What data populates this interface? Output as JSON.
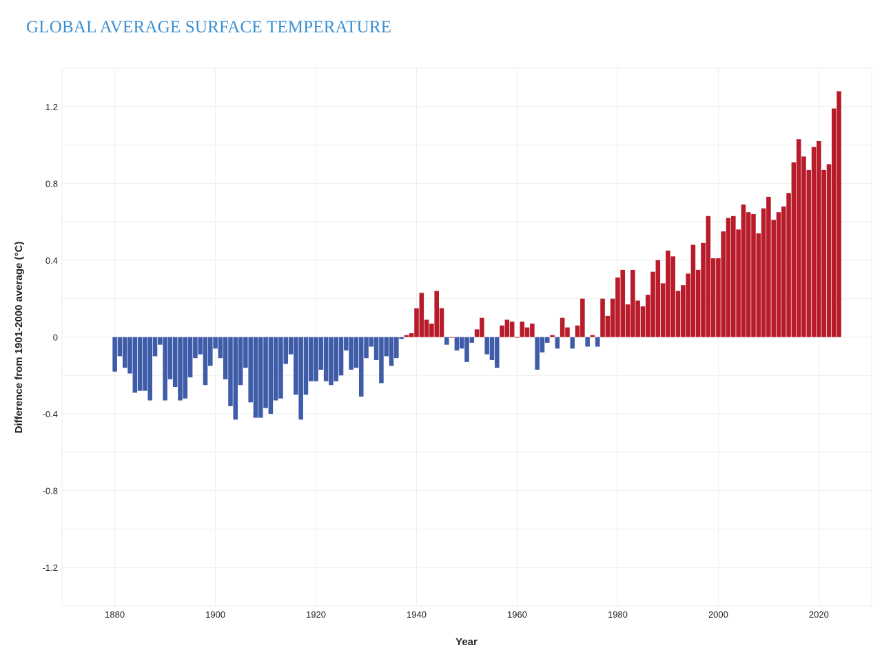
{
  "title": "GLOBAL AVERAGE SURFACE TEMPERATURE",
  "chart_data": {
    "type": "bar",
    "title": "GLOBAL AVERAGE SURFACE TEMPERATURE",
    "xlabel": "Year",
    "ylabel": "Difference from 1901-2000 average (°C)",
    "xlim": [
      1869.5,
      2030.5
    ],
    "ylim": [
      -1.4,
      1.4
    ],
    "x_ticks": [
      1880,
      1900,
      1920,
      1940,
      1960,
      1980,
      2000,
      2020
    ],
    "y_ticks": [
      "-1.2",
      "-0.8",
      "-0.4",
      "0",
      "0.4",
      "0.8",
      "1.2"
    ],
    "y_tick_values": [
      -1.2,
      -0.8,
      -0.4,
      0,
      0.4,
      0.8,
      1.2
    ],
    "grid": true,
    "colors": {
      "positive": "#b81b29",
      "negative": "#3f5ca9",
      "title": "#3b8fd0"
    },
    "start_year": 1880,
    "values": [
      -0.18,
      -0.1,
      -0.16,
      -0.19,
      -0.29,
      -0.28,
      -0.28,
      -0.33,
      -0.1,
      -0.04,
      -0.33,
      -0.22,
      -0.26,
      -0.33,
      -0.32,
      -0.21,
      -0.11,
      -0.09,
      -0.25,
      -0.15,
      -0.06,
      -0.11,
      -0.22,
      -0.36,
      -0.43,
      -0.25,
      -0.16,
      -0.34,
      -0.42,
      -0.42,
      -0.37,
      -0.4,
      -0.33,
      -0.32,
      -0.14,
      -0.09,
      -0.3,
      -0.43,
      -0.3,
      -0.23,
      -0.23,
      -0.17,
      -0.23,
      -0.25,
      -0.23,
      -0.2,
      -0.07,
      -0.17,
      -0.16,
      -0.31,
      -0.11,
      -0.05,
      -0.12,
      -0.24,
      -0.1,
      -0.15,
      -0.11,
      -0.01,
      0.01,
      0.02,
      0.15,
      0.23,
      0.09,
      0.07,
      0.24,
      0.15,
      -0.04,
      0.0,
      -0.07,
      -0.06,
      -0.13,
      -0.03,
      0.04,
      0.1,
      -0.09,
      -0.12,
      -0.16,
      0.06,
      0.09,
      0.08,
      0.0,
      0.08,
      0.05,
      0.07,
      -0.17,
      -0.08,
      -0.03,
      0.01,
      -0.06,
      0.1,
      0.05,
      -0.06,
      0.06,
      0.2,
      -0.05,
      0.01,
      -0.05,
      0.2,
      0.11,
      0.2,
      0.31,
      0.35,
      0.17,
      0.35,
      0.19,
      0.16,
      0.22,
      0.34,
      0.4,
      0.28,
      0.45,
      0.42,
      0.24,
      0.27,
      0.33,
      0.48,
      0.35,
      0.49,
      0.63,
      0.41,
      0.41,
      0.55,
      0.62,
      0.63,
      0.56,
      0.69,
      0.65,
      0.64,
      0.54,
      0.67,
      0.73,
      0.61,
      0.65,
      0.68,
      0.75,
      0.91,
      1.03,
      0.94,
      0.87,
      0.99,
      1.02,
      0.87,
      0.9,
      1.19,
      1.28
    ]
  }
}
